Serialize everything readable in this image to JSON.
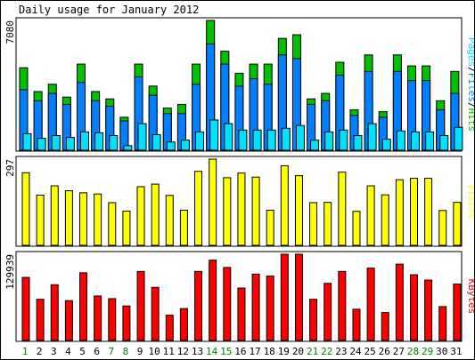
{
  "chart_data": {
    "type": "bar",
    "title": "Daily usage for January 2012",
    "days": [
      "1",
      "2",
      "3",
      "4",
      "5",
      "6",
      "7",
      "8",
      "9",
      "10",
      "11",
      "12",
      "13",
      "14",
      "15",
      "16",
      "17",
      "18",
      "19",
      "20",
      "21",
      "22",
      "23",
      "24",
      "25",
      "26",
      "27",
      "28",
      "29",
      "30",
      "31"
    ],
    "weekend_days": [
      "1",
      "7",
      "8",
      "14",
      "15",
      "21",
      "22",
      "28",
      "29"
    ],
    "panels": [
      {
        "id": "hits",
        "ymax_label": "7080",
        "ylim": [
          0,
          7080
        ],
        "right_label": [
          "Pages",
          "/",
          "Files",
          "/",
          "Hits"
        ],
        "series": [
          {
            "name": "Hits",
            "color": "#00c000",
            "values": [
              4500,
              3200,
              3600,
              2900,
              4700,
              3200,
              2800,
              1800,
              4700,
              3500,
              2300,
              2500,
              4700,
              7080,
              5400,
              4200,
              4700,
              4700,
              6100,
              6300,
              2800,
              3100,
              4800,
              2200,
              5200,
              2100,
              5200,
              4600,
              4600,
              2700,
              4300
            ]
          },
          {
            "name": "Files",
            "color": "#0080ff",
            "values": [
              3300,
              2700,
              3100,
              2500,
              3700,
              2700,
              2400,
              1600,
              4000,
              3000,
              2000,
              2000,
              3600,
              5800,
              4700,
              3500,
              3900,
              3600,
              5200,
              5000,
              2500,
              2700,
              4100,
              1900,
              4300,
              1800,
              4300,
              3800,
              3800,
              2200,
              3100
            ]
          },
          {
            "name": "Pages",
            "color": "#00e0ff",
            "values": [
              900,
              650,
              800,
              700,
              1000,
              950,
              800,
              250,
              1450,
              850,
              450,
              550,
              1000,
              1650,
              1450,
              1100,
              1100,
              1100,
              1200,
              1350,
              550,
              1000,
              1100,
              800,
              1450,
              600,
              1050,
              1000,
              1000,
              800,
              1250
            ]
          }
        ]
      },
      {
        "id": "visits",
        "ymax_label": "297",
        "ylim": [
          0,
          297
        ],
        "right_label": [
          "Visits"
        ],
        "series": [
          {
            "name": "Visits",
            "color": "#ffff00",
            "values": [
              250,
              173,
              205,
              188,
              181,
              177,
              147,
              118,
              202,
              211,
              172,
              121,
              255,
              297,
              233,
              249,
              235,
              121,
              274,
              240,
              147,
              148,
              252,
              117,
              205,
              174,
              226,
              231,
              231,
              120,
              148
            ]
          }
        ]
      },
      {
        "id": "kbytes",
        "ymax_label": "129939",
        "ylim": [
          0,
          129939
        ],
        "right_label": [
          "KBytes"
        ],
        "series": [
          {
            "name": "KBytes",
            "color": "#ff0000",
            "values": [
              95000,
              62000,
              84000,
              60000,
              102000,
              67000,
              63000,
              52000,
              104000,
              80000,
              38000,
              48000,
              104000,
              121000,
              110000,
              79000,
              100000,
              97000,
              129939,
              129939,
              62000,
              86000,
              104000,
              47000,
              109000,
              42000,
              115000,
              99000,
              91000,
              51000,
              85000
            ]
          }
        ]
      }
    ]
  }
}
